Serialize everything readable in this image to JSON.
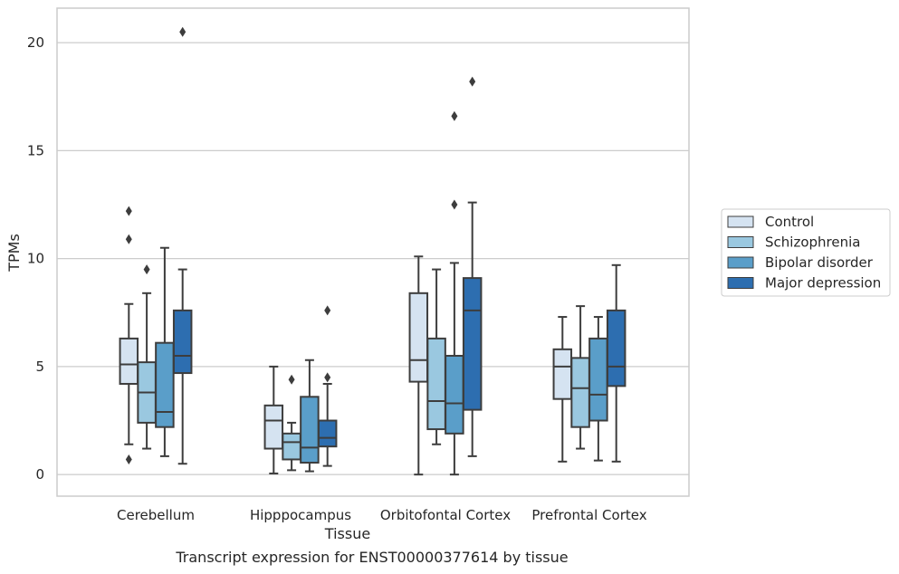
{
  "chart_data": {
    "type": "box",
    "title": "Transcript expression for ENST00000377614 by tissue",
    "xlabel": "Tissue",
    "ylabel": "TPMs",
    "ylim": [
      -1,
      21.6
    ],
    "yticks": [
      0,
      5,
      10,
      15,
      20
    ],
    "grid": "horizontal",
    "legend_position": "right",
    "categories": [
      "Cerebellum",
      "Hipppocampus",
      "Orbitofontal Cortex",
      "Prefrontal Cortex"
    ],
    "series": [
      {
        "name": "Control",
        "color": "#d5e3f1",
        "boxes": [
          {
            "whislo": 1.4,
            "q1": 4.2,
            "med": 5.1,
            "q3": 6.3,
            "whishi": 7.9,
            "fliers": [
              0.7,
              10.9,
              12.2
            ]
          },
          {
            "whislo": 0.05,
            "q1": 1.2,
            "med": 2.5,
            "q3": 3.2,
            "whishi": 5.0,
            "fliers": []
          },
          {
            "whislo": 0.0,
            "q1": 4.3,
            "med": 5.3,
            "q3": 8.4,
            "whishi": 10.1,
            "fliers": []
          },
          {
            "whislo": 0.6,
            "q1": 3.5,
            "med": 5.0,
            "q3": 5.8,
            "whishi": 7.3,
            "fliers": []
          }
        ]
      },
      {
        "name": "Schizophrenia",
        "color": "#9ac8e0",
        "boxes": [
          {
            "whislo": 1.2,
            "q1": 2.4,
            "med": 3.8,
            "q3": 5.2,
            "whishi": 8.4,
            "fliers": [
              9.5
            ]
          },
          {
            "whislo": 0.2,
            "q1": 0.7,
            "med": 1.5,
            "q3": 1.9,
            "whishi": 2.4,
            "fliers": [
              4.4
            ]
          },
          {
            "whislo": 1.4,
            "q1": 2.1,
            "med": 3.4,
            "q3": 6.3,
            "whishi": 9.5,
            "fliers": []
          },
          {
            "whislo": 1.2,
            "q1": 2.2,
            "med": 4.0,
            "q3": 5.4,
            "whishi": 7.8,
            "fliers": []
          }
        ]
      },
      {
        "name": "Bipolar disorder",
        "color": "#5a9ec9",
        "boxes": [
          {
            "whislo": 0.85,
            "q1": 2.2,
            "med": 2.9,
            "q3": 6.1,
            "whishi": 10.5,
            "fliers": []
          },
          {
            "whislo": 0.15,
            "q1": 0.55,
            "med": 1.25,
            "q3": 3.6,
            "whishi": 5.3,
            "fliers": []
          },
          {
            "whislo": 0.0,
            "q1": 1.9,
            "med": 3.3,
            "q3": 5.5,
            "whishi": 9.8,
            "fliers": [
              12.5,
              16.6
            ]
          },
          {
            "whislo": 0.65,
            "q1": 2.5,
            "med": 3.7,
            "q3": 6.3,
            "whishi": 7.3,
            "fliers": []
          }
        ]
      },
      {
        "name": "Major depression",
        "color": "#2d6eb0",
        "boxes": [
          {
            "whislo": 0.5,
            "q1": 4.7,
            "med": 5.5,
            "q3": 7.6,
            "whishi": 9.5,
            "fliers": [
              20.5
            ]
          },
          {
            "whislo": 0.4,
            "q1": 1.3,
            "med": 1.7,
            "q3": 2.5,
            "whishi": 4.2,
            "fliers": [
              4.5,
              7.6
            ]
          },
          {
            "whislo": 0.85,
            "q1": 3.0,
            "med": 7.6,
            "q3": 9.1,
            "whishi": 12.6,
            "fliers": [
              18.2
            ]
          },
          {
            "whislo": 0.6,
            "q1": 4.1,
            "med": 5.0,
            "q3": 7.6,
            "whishi": 9.7,
            "fliers": []
          }
        ]
      }
    ]
  }
}
